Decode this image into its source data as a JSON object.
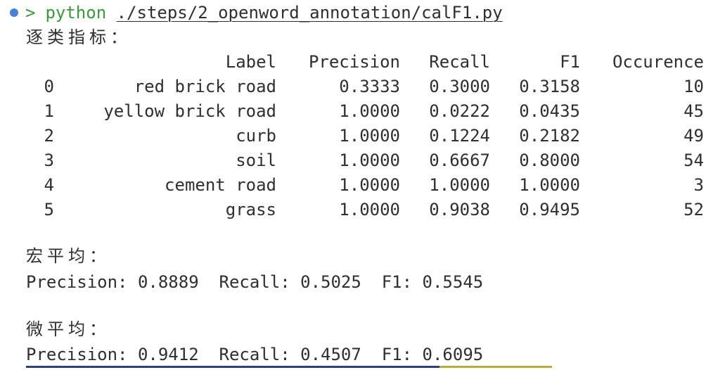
{
  "colors": {
    "bullet": "#4a7fd6",
    "prompt_arrow": "#3b9a3b",
    "command": "#3b9a3b",
    "text": "#2f2f2f",
    "selection_blue": "#2c3e7e",
    "selection_olive": "#b8ad3a"
  },
  "prompt": {
    "arrow": ">",
    "command": "python",
    "path": "./steps/2_openword_annotation/calF1.py"
  },
  "per_class_title": "逐类指标：",
  "table": {
    "headers": [
      "",
      "Label",
      "Precision",
      "Recall",
      "F1",
      "Occurence"
    ],
    "rows": [
      {
        "idx": "0",
        "label": "red brick road",
        "precision": "0.3333",
        "recall": "0.3000",
        "f1": "0.3158",
        "occurrence": "10"
      },
      {
        "idx": "1",
        "label": "yellow brick road",
        "precision": "1.0000",
        "recall": "0.0222",
        "f1": "0.0435",
        "occurrence": "45"
      },
      {
        "idx": "2",
        "label": "curb",
        "precision": "1.0000",
        "recall": "0.1224",
        "f1": "0.2182",
        "occurrence": "49"
      },
      {
        "idx": "3",
        "label": "soil",
        "precision": "1.0000",
        "recall": "0.6667",
        "f1": "0.8000",
        "occurrence": "54"
      },
      {
        "idx": "4",
        "label": "cement road",
        "precision": "1.0000",
        "recall": "1.0000",
        "f1": "1.0000",
        "occurrence": "3"
      },
      {
        "idx": "5",
        "label": "grass",
        "precision": "1.0000",
        "recall": "0.9038",
        "f1": "0.9495",
        "occurrence": "52"
      }
    ]
  },
  "macro": {
    "title": "宏平均：",
    "line": "Precision: 0.8889  Recall: 0.5025  F1: 0.5545"
  },
  "micro": {
    "title": "微平均：",
    "line": "Precision: 0.9412  Recall: 0.4507  F1: 0.6095"
  }
}
